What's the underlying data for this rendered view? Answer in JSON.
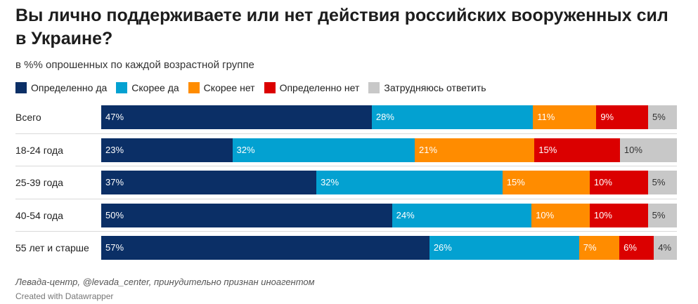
{
  "title": "Вы лично поддерживаете или нет действия российских вооруженных сил в Украине?",
  "subtitle": "в %% опрошенных по каждой возрастной группе",
  "colors": {
    "definitely_yes": "#0b2f66",
    "rather_yes": "#03a1d1",
    "rather_no": "#ff8c00",
    "definitely_no": "#db0000",
    "hard_to_say": "#c8c8c8"
  },
  "legend": [
    {
      "key": "definitely_yes",
      "label": "Определенно да"
    },
    {
      "key": "rather_yes",
      "label": "Скорее да"
    },
    {
      "key": "rather_no",
      "label": "Скорее нет"
    },
    {
      "key": "definitely_no",
      "label": "Определенно нет"
    },
    {
      "key": "hard_to_say",
      "label": "Затрудняюсь ответить"
    }
  ],
  "chart_data": {
    "type": "bar",
    "orientation": "horizontal",
    "stacked": true,
    "title": "Вы лично поддерживаете или нет действия российских вооруженных сил в Украине?",
    "subtitle": "в %% опрошенных по каждой возрастной группе",
    "categories": [
      "Всего",
      "18-24 года",
      "25-39 года",
      "40-54 года",
      "55 лет и старше"
    ],
    "series": [
      {
        "key": "definitely_yes",
        "name": "Определенно да",
        "values": [
          47,
          23,
          37,
          50,
          57
        ]
      },
      {
        "key": "rather_yes",
        "name": "Скорее да",
        "values": [
          28,
          32,
          32,
          24,
          26
        ]
      },
      {
        "key": "rather_no",
        "name": "Скорее нет",
        "values": [
          11,
          21,
          15,
          10,
          7
        ]
      },
      {
        "key": "definitely_no",
        "name": "Определенно нет",
        "values": [
          9,
          15,
          10,
          10,
          6
        ]
      },
      {
        "key": "hard_to_say",
        "name": "Затрудняюсь ответить",
        "values": [
          5,
          10,
          5,
          5,
          4
        ]
      }
    ],
    "value_suffix": "%",
    "legend_position": "top-left"
  },
  "source": "Левада-центр, @levada_center, принудительно признан иноагентом",
  "credit": "Created with Datawrapper"
}
